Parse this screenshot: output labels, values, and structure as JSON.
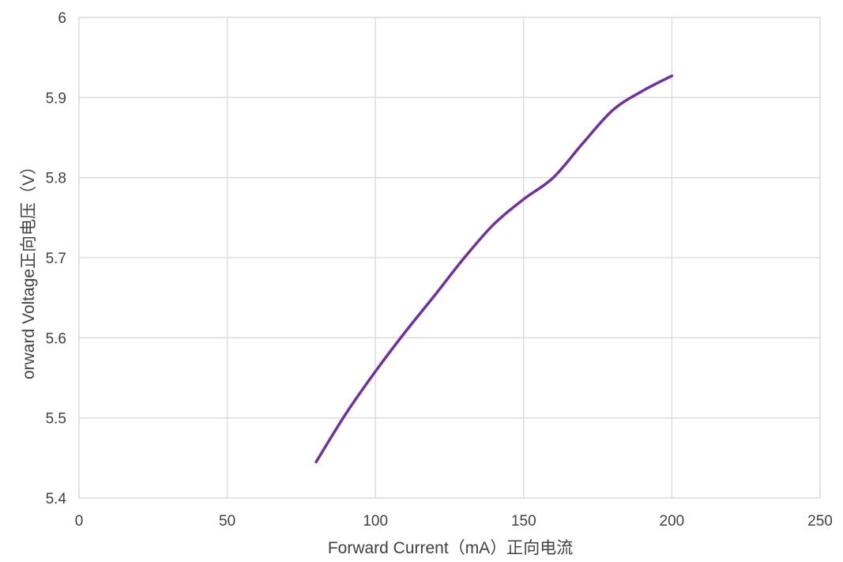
{
  "chart_data": {
    "type": "line",
    "title": "",
    "xlabel": "Forward Current（mA）正向电流",
    "ylabel": "orward Voltage正向电压（V）",
    "xlim": [
      0,
      250
    ],
    "ylim": [
      5.4,
      6.0
    ],
    "x_ticks": [
      "0",
      "50",
      "100",
      "150",
      "200",
      "250"
    ],
    "y_ticks": [
      "5.4",
      "5.5",
      "5.6",
      "5.7",
      "5.8",
      "5.9",
      "6"
    ],
    "grid": true,
    "legend": "none",
    "series": [
      {
        "color": "#7030A0",
        "x": [
          80,
          90,
          100,
          110,
          120,
          130,
          140,
          150,
          160,
          170,
          180,
          190,
          200
        ],
        "y": [
          5.445,
          5.505,
          5.558,
          5.607,
          5.653,
          5.7,
          5.742,
          5.773,
          5.8,
          5.843,
          5.884,
          5.908,
          5.927
        ]
      }
    ]
  }
}
